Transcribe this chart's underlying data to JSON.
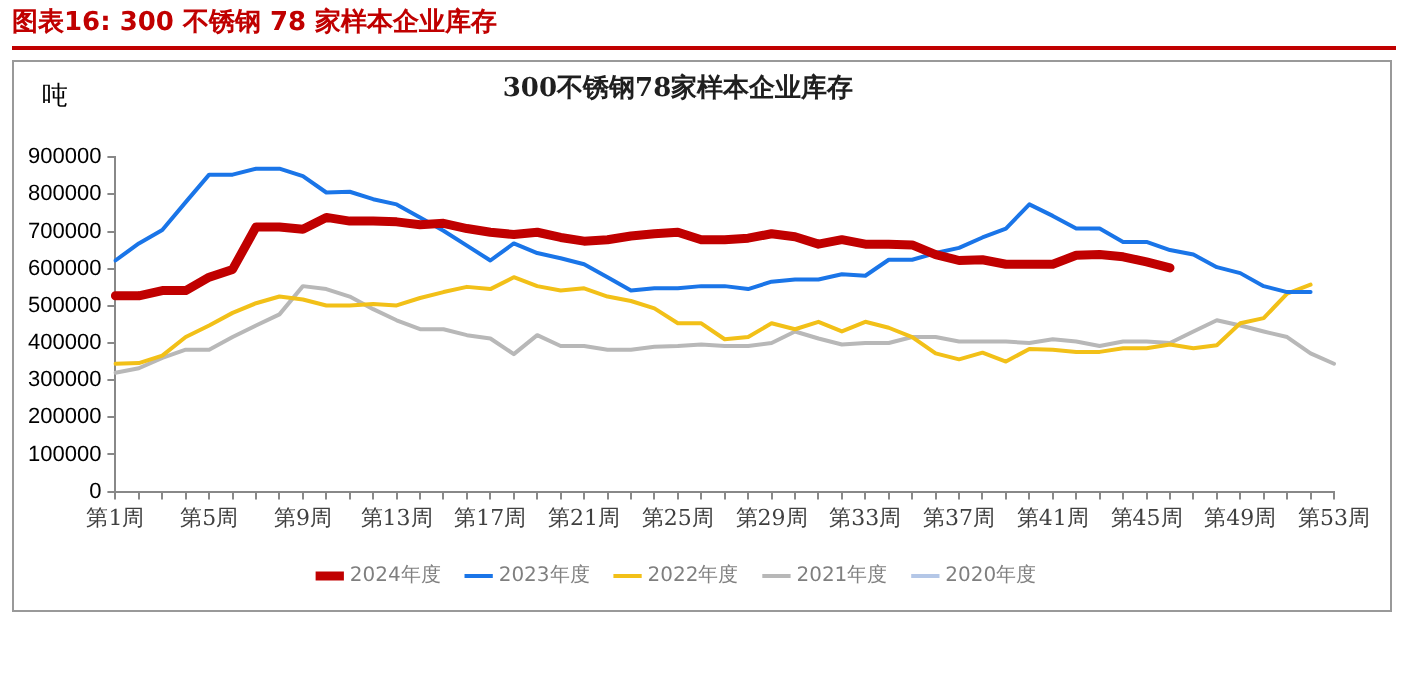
{
  "chart_data": {
    "type": "line",
    "title": "300不锈钢78家样本企业库存",
    "ylabel": "吨",
    "annotations": [
      "图表16:  300 不锈钢 78 家样本企业库存"
    ],
    "categories": [
      "第1周",
      null,
      null,
      null,
      "第5周",
      null,
      null,
      null,
      "第9周",
      null,
      null,
      null,
      "第13周",
      null,
      null,
      null,
      "第17周",
      null,
      null,
      null,
      "第21周",
      null,
      null,
      null,
      "第25周",
      null,
      null,
      null,
      "第29周",
      null,
      null,
      null,
      "第33周",
      null,
      null,
      null,
      "第37周",
      null,
      null,
      null,
      "第41周",
      null,
      null,
      null,
      "第45周",
      null,
      null,
      null,
      "第49周",
      null,
      null,
      null,
      "第53周"
    ],
    "ylim": [
      0,
      900000
    ],
    "yticks": [
      0,
      100000,
      200000,
      300000,
      400000,
      500000,
      600000,
      700000,
      800000,
      900000
    ],
    "grid": false,
    "legend": "bottom",
    "marker": "none",
    "line_style": "solid",
    "series": [
      {
        "name": "2024年度",
        "color": "#c00000",
        "values": [
          527000,
          527000,
          541000,
          541000,
          577000,
          598000,
          712000,
          712000,
          706000,
          738000,
          728000,
          728000,
          726000,
          718000,
          722000,
          708000,
          698000,
          692000,
          698000,
          684000,
          674000,
          678000,
          688000,
          694000,
          698000,
          678000,
          678000,
          682000,
          694000,
          686000,
          666000,
          678000,
          666000,
          666000,
          664000,
          638000,
          622000,
          624000,
          612000,
          612000,
          612000,
          636000,
          638000,
          632000,
          618000,
          602000,
          null,
          null,
          null,
          null,
          null,
          null,
          null
        ]
      },
      {
        "name": "2023年度",
        "color": "#1a75e8",
        "values": [
          622000,
          668000,
          704000,
          779000,
          853000,
          853000,
          869000,
          869000,
          849000,
          805000,
          807000,
          787000,
          773000,
          738000,
          702000,
          662000,
          622000,
          668000,
          642000,
          628000,
          612000,
          577000,
          541000,
          547000,
          547000,
          553000,
          553000,
          545000,
          565000,
          571000,
          571000,
          585000,
          581000,
          624000,
          624000,
          642000,
          656000,
          684000,
          708000,
          773000,
          742000,
          708000,
          708000,
          672000,
          672000,
          650000,
          638000,
          604000,
          588000,
          553000,
          537000,
          537000,
          null
        ]
      },
      {
        "name": "2022年度",
        "color": "#f2c018",
        "values": [
          344000,
          346000,
          366000,
          416000,
          447000,
          481000,
          507000,
          525000,
          517000,
          501000,
          501000,
          505000,
          501000,
          521000,
          537000,
          551000,
          545000,
          577000,
          553000,
          541000,
          547000,
          525000,
          513000,
          493000,
          453000,
          453000,
          410000,
          416000,
          453000,
          437000,
          457000,
          431000,
          457000,
          441000,
          416000,
          372000,
          356000,
          374000,
          350000,
          384000,
          382000,
          376000,
          376000,
          386000,
          386000,
          396000,
          386000,
          394000,
          453000,
          467000,
          533000,
          557000,
          null
        ]
      },
      {
        "name": "2021年度",
        "color": "#b8b8b8",
        "values": [
          320000,
          332000,
          360000,
          382000,
          382000,
          416000,
          447000,
          477000,
          553000,
          545000,
          525000,
          491000,
          461000,
          437000,
          437000,
          421000,
          412000,
          370000,
          421000,
          392000,
          392000,
          382000,
          382000,
          390000,
          392000,
          396000,
          392000,
          392000,
          400000,
          431000,
          412000,
          396000,
          400000,
          400000,
          416000,
          416000,
          404000,
          404000,
          404000,
          400000,
          410000,
          404000,
          392000,
          404000,
          404000,
          400000,
          431000,
          461000,
          447000,
          431000,
          416000,
          372000,
          344000
        ]
      },
      {
        "name": "2020年度",
        "color": "#b4c7e7",
        "values": [
          null,
          null,
          null,
          null,
          null,
          null,
          null,
          null,
          null,
          null,
          null,
          null,
          null,
          null,
          null,
          null,
          null,
          null,
          null,
          null,
          null,
          null,
          null,
          null,
          null,
          null,
          null,
          null,
          null,
          null,
          null,
          null,
          null,
          null,
          null,
          null,
          null,
          null,
          null,
          null,
          null,
          null,
          null,
          null,
          null,
          null,
          null,
          null,
          null,
          null,
          null,
          null,
          null
        ]
      }
    ]
  }
}
